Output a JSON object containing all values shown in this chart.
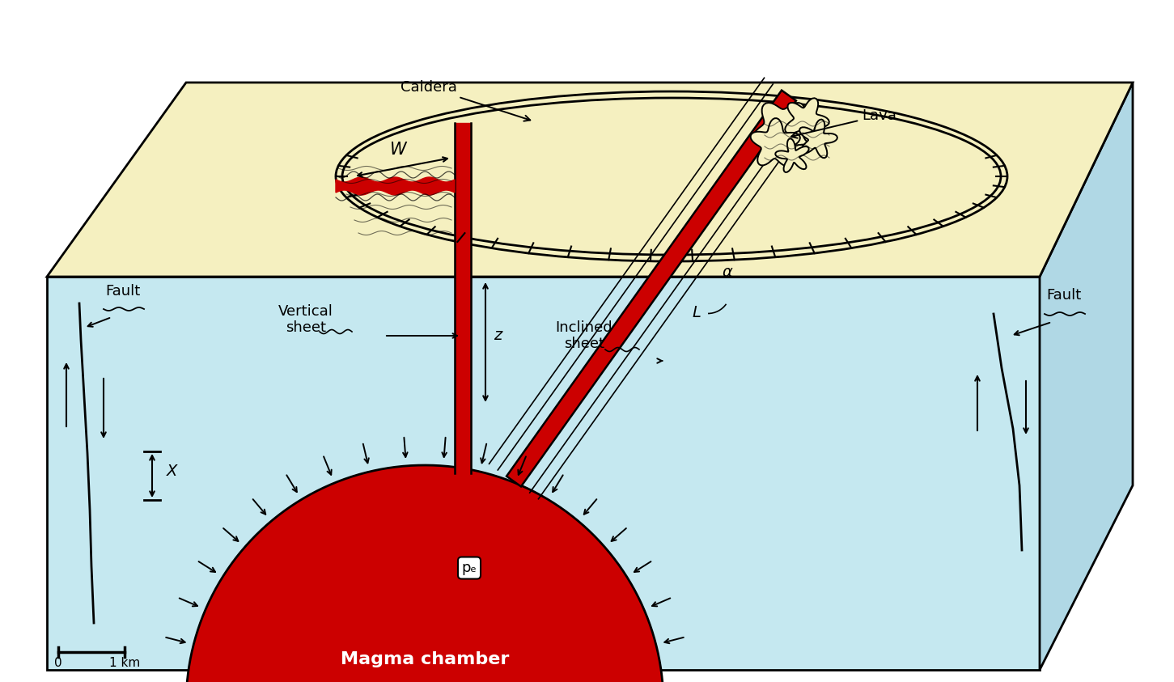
{
  "bg_color": "#ffffff",
  "light_blue": "#c5e8f0",
  "light_blue_side": "#b0d8e5",
  "light_yellow": "#f5f0c0",
  "red_magma": "#cc0000",
  "figsize": [
    14.51,
    8.43
  ],
  "dpi": 100,
  "labels": {
    "caldera": "Caldera",
    "lava": "Lava",
    "vertical_sheet": "Vertical\nsheet",
    "inclined_sheet": "Inclined\nsheet",
    "fault_left": "Fault",
    "fault_right": "Fault",
    "magma_chamber": "Magma chamber",
    "pe": "pₑ",
    "W": "W",
    "z": "z",
    "L": "L",
    "alpha": "α",
    "X": "X",
    "scale_0": "0",
    "scale_1km": "1 km"
  }
}
